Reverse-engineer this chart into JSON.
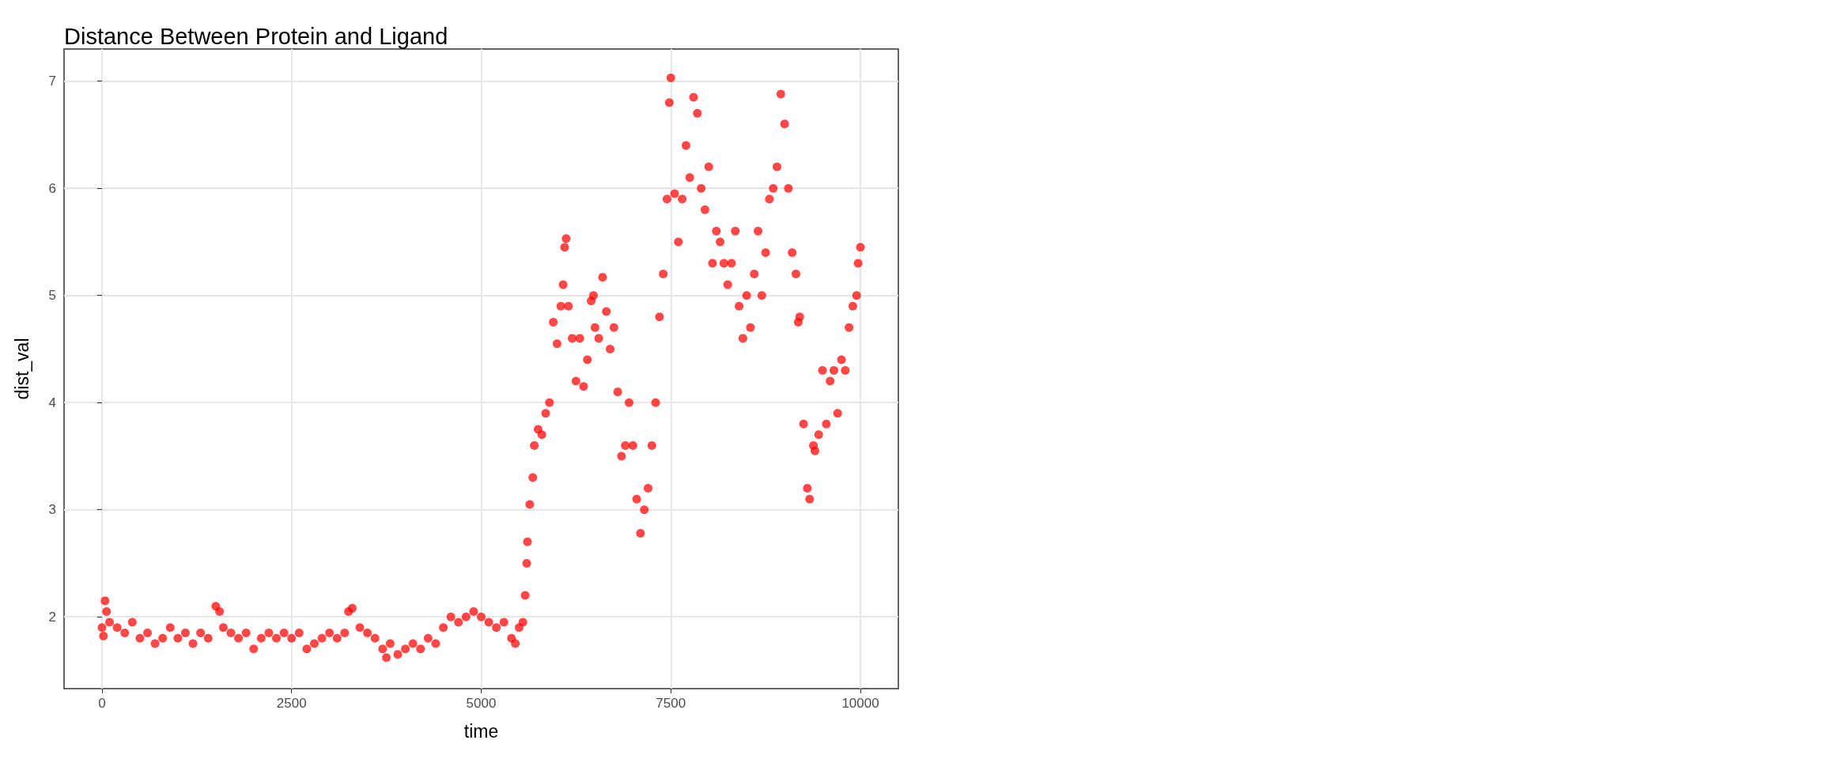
{
  "chart_data": {
    "type": "scatter",
    "title": "Distance Between Protein and Ligand",
    "xlabel": "time",
    "ylabel": "dist_val",
    "x": [
      0,
      20,
      40,
      60,
      100,
      200,
      300,
      400,
      500,
      600,
      700,
      800,
      900,
      1000,
      1100,
      1200,
      1300,
      1400,
      1500,
      1550,
      1600,
      1700,
      1800,
      1900,
      2000,
      2100,
      2200,
      2300,
      2400,
      2500,
      2600,
      2700,
      2800,
      2900,
      3000,
      3100,
      3200,
      3250,
      3300,
      3400,
      3500,
      3600,
      3700,
      3750,
      3800,
      3900,
      4000,
      4100,
      4200,
      4300,
      4400,
      4500,
      4600,
      4700,
      4800,
      4900,
      5000,
      5100,
      5200,
      5300,
      5400,
      5450,
      5500,
      5550,
      5580,
      5600,
      5610,
      5640,
      5680,
      5700,
      5750,
      5800,
      5850,
      5900,
      5950,
      6000,
      6050,
      6080,
      6100,
      6120,
      6150,
      6200,
      6250,
      6300,
      6350,
      6400,
      6450,
      6480,
      6500,
      6550,
      6600,
      6650,
      6700,
      6750,
      6800,
      6850,
      6900,
      6950,
      7000,
      7050,
      7100,
      7150,
      7200,
      7250,
      7300,
      7350,
      7400,
      7450,
      7480,
      7500,
      7550,
      7600,
      7650,
      7700,
      7750,
      7800,
      7850,
      7900,
      7950,
      8000,
      8050,
      8100,
      8150,
      8200,
      8250,
      8300,
      8350,
      8400,
      8450,
      8500,
      8550,
      8600,
      8650,
      8700,
      8750,
      8800,
      8850,
      8900,
      8950,
      9000,
      9050,
      9100,
      9150,
      9180,
      9200,
      9250,
      9300,
      9330,
      9380,
      9400,
      9450,
      9500,
      9550,
      9600,
      9650,
      9700,
      9750,
      9800,
      9850,
      9900,
      9950,
      9970,
      10000
    ],
    "values": [
      1.9,
      1.82,
      2.15,
      2.05,
      1.95,
      1.9,
      1.85,
      1.95,
      1.8,
      1.85,
      1.75,
      1.8,
      1.9,
      1.8,
      1.85,
      1.75,
      1.85,
      1.8,
      2.1,
      2.05,
      1.9,
      1.85,
      1.8,
      1.85,
      1.7,
      1.8,
      1.85,
      1.8,
      1.85,
      1.8,
      1.85,
      1.7,
      1.75,
      1.8,
      1.85,
      1.8,
      1.85,
      2.05,
      2.08,
      1.9,
      1.85,
      1.8,
      1.7,
      1.62,
      1.75,
      1.65,
      1.7,
      1.75,
      1.7,
      1.8,
      1.75,
      1.9,
      2.0,
      1.95,
      2.0,
      2.05,
      2.0,
      1.95,
      1.9,
      1.95,
      1.8,
      1.75,
      1.9,
      1.95,
      2.2,
      2.5,
      2.7,
      3.05,
      3.3,
      3.6,
      3.75,
      3.7,
      3.9,
      4.0,
      4.75,
      4.55,
      4.9,
      5.1,
      5.45,
      5.53,
      4.9,
      4.6,
      4.2,
      4.6,
      4.15,
      4.4,
      4.95,
      5.0,
      4.7,
      4.6,
      5.17,
      4.85,
      4.5,
      4.7,
      4.1,
      3.5,
      3.6,
      4.0,
      3.6,
      3.1,
      2.78,
      3.0,
      3.2,
      3.6,
      4.0,
      4.8,
      5.2,
      5.9,
      6.8,
      7.03,
      5.95,
      5.5,
      5.9,
      6.4,
      6.1,
      6.85,
      6.7,
      6.0,
      5.8,
      6.2,
      5.3,
      5.6,
      5.5,
      5.3,
      5.1,
      5.3,
      5.6,
      4.9,
      4.6,
      5.0,
      4.7,
      5.2,
      5.6,
      5.0,
      5.4,
      5.9,
      6.0,
      6.2,
      6.88,
      6.6,
      6.0,
      5.4,
      5.2,
      4.75,
      4.8,
      3.8,
      3.2,
      3.1,
      3.6,
      3.55,
      3.7,
      4.3,
      3.8,
      4.2,
      4.3,
      3.9,
      4.4,
      4.3,
      4.7,
      4.9,
      5.0,
      5.3,
      5.45
    ],
    "color": "#ff0000",
    "marker": "circle",
    "xlim": [
      -500,
      10500
    ],
    "xticks": [
      0,
      2500,
      5000,
      7500,
      10000
    ],
    "ylim": [
      1.33,
      7.3
    ],
    "yticks": [
      2,
      3,
      4,
      5,
      6,
      7
    ],
    "grid": true
  }
}
